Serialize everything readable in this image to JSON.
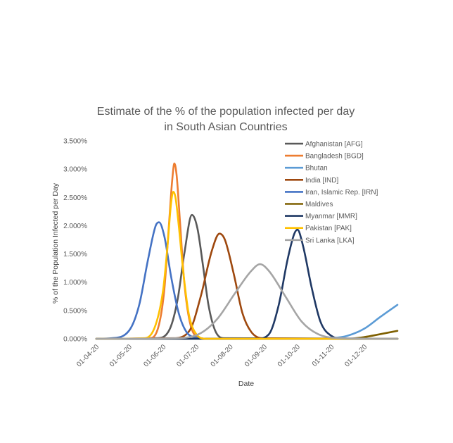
{
  "chart_data": {
    "type": "line",
    "title": "Estimate of the % of the population infected per day\nin South Asian Countries",
    "xlabel": "Date",
    "ylabel": "% of the Population Infected per Day",
    "ylim": [
      0,
      3.5
    ],
    "yticks": [
      "0.000%",
      "0.500%",
      "1.000%",
      "1.500%",
      "2.000%",
      "2.500%",
      "3.000%",
      "3.500%"
    ],
    "xlim": [
      "2020-04-01",
      "2020-12-31"
    ],
    "xticks": [
      {
        "date": "2020-04-01",
        "label": "01-04-20"
      },
      {
        "date": "2020-05-01",
        "label": "01-05-20"
      },
      {
        "date": "2020-06-01",
        "label": "01-06-20"
      },
      {
        "date": "2020-07-01",
        "label": "01-07-20"
      },
      {
        "date": "2020-08-01",
        "label": "01-08-20"
      },
      {
        "date": "2020-09-01",
        "label": "01-09-20"
      },
      {
        "date": "2020-10-01",
        "label": "01-10-20"
      },
      {
        "date": "2020-11-01",
        "label": "01-11-20"
      },
      {
        "date": "2020-12-01",
        "label": "01-12-20"
      }
    ],
    "legend_position": "right",
    "grid": false,
    "series": [
      {
        "name": "Afghanistan [AFG]",
        "color": "#595959",
        "points": [
          [
            "2020-04-01",
            0
          ],
          [
            "2020-05-26",
            0.01
          ],
          [
            "2020-06-07",
            0.18
          ],
          [
            "2020-06-14",
            0.7
          ],
          [
            "2020-06-20",
            1.5
          ],
          [
            "2020-06-27",
            2.19
          ],
          [
            "2020-07-02",
            1.95
          ],
          [
            "2020-07-07",
            1.3
          ],
          [
            "2020-07-12",
            0.6
          ],
          [
            "2020-07-18",
            0.15
          ],
          [
            "2020-07-26",
            0.01
          ],
          [
            "2020-12-31",
            0
          ]
        ]
      },
      {
        "name": "Bangladesh [BGD]",
        "color": "#ED7D31",
        "points": [
          [
            "2020-04-01",
            0
          ],
          [
            "2020-05-20",
            0.01
          ],
          [
            "2020-05-28",
            0.25
          ],
          [
            "2020-06-02",
            0.9
          ],
          [
            "2020-06-06",
            2.0
          ],
          [
            "2020-06-09",
            2.8
          ],
          [
            "2020-06-11",
            3.1
          ],
          [
            "2020-06-13",
            2.9
          ],
          [
            "2020-06-16",
            2.1
          ],
          [
            "2020-06-20",
            1.0
          ],
          [
            "2020-06-25",
            0.3
          ],
          [
            "2020-07-02",
            0.03
          ],
          [
            "2020-07-12",
            0
          ],
          [
            "2020-12-31",
            0
          ]
        ]
      },
      {
        "name": "Bhutan",
        "color": "#5B9BD5",
        "points": [
          [
            "2020-04-01",
            0
          ],
          [
            "2020-10-20",
            0
          ],
          [
            "2020-11-01",
            0.01
          ],
          [
            "2020-11-15",
            0.05
          ],
          [
            "2020-12-01",
            0.18
          ],
          [
            "2020-12-15",
            0.38
          ],
          [
            "2020-12-31",
            0.6
          ]
        ]
      },
      {
        "name": "India [IND]",
        "color": "#9E480E",
        "points": [
          [
            "2020-04-01",
            0
          ],
          [
            "2020-06-10",
            0.01
          ],
          [
            "2020-06-25",
            0.15
          ],
          [
            "2020-07-05",
            0.75
          ],
          [
            "2020-07-15",
            1.55
          ],
          [
            "2020-07-22",
            1.86
          ],
          [
            "2020-07-27",
            1.75
          ],
          [
            "2020-08-04",
            1.15
          ],
          [
            "2020-08-12",
            0.45
          ],
          [
            "2020-08-20",
            0.12
          ],
          [
            "2020-08-30",
            0.01
          ],
          [
            "2020-12-31",
            0
          ]
        ]
      },
      {
        "name": "Iran, Islamic Rep. [IRN]",
        "color": "#4472C4",
        "points": [
          [
            "2020-04-01",
            0
          ],
          [
            "2020-04-15",
            0.01
          ],
          [
            "2020-05-01",
            0.15
          ],
          [
            "2020-05-10",
            0.6
          ],
          [
            "2020-05-18",
            1.4
          ],
          [
            "2020-05-25",
            2.0
          ],
          [
            "2020-05-28",
            2.06
          ],
          [
            "2020-06-02",
            1.8
          ],
          [
            "2020-06-08",
            1.1
          ],
          [
            "2020-06-15",
            0.45
          ],
          [
            "2020-06-22",
            0.12
          ],
          [
            "2020-07-01",
            0.02
          ],
          [
            "2020-07-12",
            0
          ],
          [
            "2020-12-31",
            0
          ]
        ]
      },
      {
        "name": "Maldives",
        "color": "#7F6000",
        "points": [
          [
            "2020-04-01",
            0
          ],
          [
            "2020-11-15",
            0
          ],
          [
            "2020-12-01",
            0.03
          ],
          [
            "2020-12-15",
            0.08
          ],
          [
            "2020-12-31",
            0.14
          ]
        ]
      },
      {
        "name": "Myanmar [MMR]",
        "color": "#1F3864",
        "points": [
          [
            "2020-04-01",
            0
          ],
          [
            "2020-08-25",
            0
          ],
          [
            "2020-09-05",
            0.08
          ],
          [
            "2020-09-14",
            0.6
          ],
          [
            "2020-09-22",
            1.4
          ],
          [
            "2020-09-28",
            1.85
          ],
          [
            "2020-10-01",
            1.93
          ],
          [
            "2020-10-06",
            1.65
          ],
          [
            "2020-10-14",
            0.9
          ],
          [
            "2020-10-22",
            0.3
          ],
          [
            "2020-11-01",
            0.05
          ],
          [
            "2020-11-12",
            0
          ],
          [
            "2020-12-31",
            0
          ]
        ]
      },
      {
        "name": "Pakistan [PAK]",
        "color": "#FFC000",
        "points": [
          [
            "2020-04-01",
            0
          ],
          [
            "2020-05-15",
            0.01
          ],
          [
            "2020-05-25",
            0.25
          ],
          [
            "2020-06-01",
            0.9
          ],
          [
            "2020-06-05",
            1.7
          ],
          [
            "2020-06-08",
            2.4
          ],
          [
            "2020-06-10",
            2.6
          ],
          [
            "2020-06-12",
            2.5
          ],
          [
            "2020-06-15",
            2.0
          ],
          [
            "2020-06-19",
            1.2
          ],
          [
            "2020-06-24",
            0.45
          ],
          [
            "2020-07-01",
            0.08
          ],
          [
            "2020-07-10",
            0
          ],
          [
            "2020-12-31",
            0
          ]
        ]
      },
      {
        "name": "Sri Lanka [LKA]",
        "color": "#A5A5A5",
        "points": [
          [
            "2020-04-01",
            0
          ],
          [
            "2020-06-15",
            0.01
          ],
          [
            "2020-07-05",
            0.1
          ],
          [
            "2020-07-20",
            0.35
          ],
          [
            "2020-08-05",
            0.8
          ],
          [
            "2020-08-20",
            1.2
          ],
          [
            "2020-08-28",
            1.32
          ],
          [
            "2020-09-05",
            1.2
          ],
          [
            "2020-09-20",
            0.75
          ],
          [
            "2020-10-05",
            0.3
          ],
          [
            "2020-10-20",
            0.08
          ],
          [
            "2020-11-10",
            0.01
          ],
          [
            "2020-12-31",
            0
          ]
        ]
      }
    ]
  }
}
